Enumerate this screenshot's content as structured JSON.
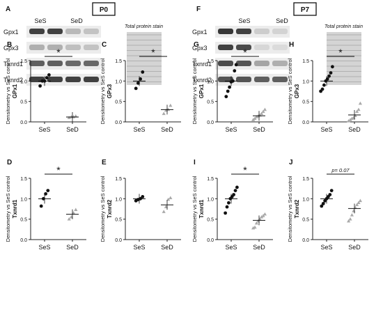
{
  "panels_blot": [
    {
      "id": "P0",
      "label_rows": "A",
      "label_stain": "",
      "box_label": "P0",
      "group_labels": [
        "SeS",
        "SeD"
      ],
      "rows": [
        "Gpx1",
        "Gpx3",
        "Txnrd1",
        "Txnrd2"
      ],
      "intensities": [
        [
          0.85,
          0.85,
          0.25,
          0.2
        ],
        [
          0.3,
          0.3,
          0.22,
          0.2
        ],
        [
          0.7,
          0.7,
          0.65,
          0.65
        ],
        [
          0.85,
          0.85,
          0.85,
          0.85
        ]
      ],
      "stain_label": "Total protein stain"
    },
    {
      "id": "P7",
      "label_rows": "F",
      "box_label": "P7",
      "group_labels": [
        "SeS",
        "SeD"
      ],
      "rows": [
        "Gpx1",
        "Gpx3",
        "Txnrd1",
        "Txnrd2"
      ],
      "intensities": [
        [
          0.9,
          0.85,
          0.15,
          0.12
        ],
        [
          0.85,
          0.8,
          0.1,
          0.08
        ],
        [
          0.8,
          0.75,
          0.35,
          0.3
        ],
        [
          0.75,
          0.75,
          0.7,
          0.7
        ]
      ],
      "stain_label": "Total protein stain"
    }
  ],
  "y_axis_common": "Densitometry vs SeS control",
  "chart_data": [
    {
      "panel": "B",
      "type": "scatter",
      "ylabel": "GPx1",
      "categories": [
        "SeS",
        "SeD"
      ],
      "ylim": [
        0,
        1.5
      ],
      "yticks": [
        "0.0",
        "0.5",
        "1.0",
        "1.5"
      ],
      "series": [
        {
          "values": [
            0.88,
            1.0,
            1.0,
            1.08,
            1.15
          ]
        },
        {
          "values": [
            0.1,
            0.12,
            0.12,
            0.14
          ]
        }
      ],
      "means": [
        1.0,
        0.12
      ],
      "significance": "*"
    },
    {
      "panel": "C",
      "type": "scatter",
      "ylabel": "GPx3",
      "categories": [
        "SeS",
        "SeD"
      ],
      "ylim": [
        0,
        1.5
      ],
      "yticks": [
        "0.0",
        "0.5",
        "1.0",
        "1.5"
      ],
      "series": [
        {
          "values": [
            0.82,
            0.95,
            1.05,
            1.22
          ]
        },
        {
          "values": [
            0.2,
            0.28,
            0.3,
            0.4
          ]
        }
      ],
      "means": [
        1.0,
        0.3
      ],
      "significance": "*"
    },
    {
      "panel": "D",
      "type": "scatter",
      "ylabel": "Txnrd1",
      "categories": [
        "SeS",
        "SeD"
      ],
      "ylim": [
        0,
        1.5
      ],
      "yticks": [
        "0.0",
        "0.5",
        "1.0",
        "1.5"
      ],
      "series": [
        {
          "values": [
            0.82,
            1.0,
            1.12,
            1.2
          ]
        },
        {
          "values": [
            0.5,
            0.55,
            0.65,
            0.73
          ]
        }
      ],
      "means": [
        1.0,
        0.62
      ],
      "significance": "*"
    },
    {
      "panel": "E",
      "type": "scatter",
      "ylabel": "Txnrd2",
      "categories": [
        "SeS",
        "SeD"
      ],
      "ylim": [
        0,
        1.5
      ],
      "yticks": [
        "0.0",
        "0.5",
        "1.0",
        "1.5"
      ],
      "series": [
        {
          "values": [
            0.95,
            0.98,
            1.0,
            1.05
          ]
        },
        {
          "values": [
            0.68,
            0.8,
            0.98,
            1.02
          ]
        }
      ],
      "means": [
        1.0,
        0.85
      ],
      "significance": ""
    },
    {
      "panel": "G",
      "type": "scatter",
      "ylabel": "GPx1",
      "categories": [
        "SeS",
        "SeD"
      ],
      "ylim": [
        0,
        1.5
      ],
      "yticks": [
        "0.0",
        "0.5",
        "1.0",
        "1.5"
      ],
      "series": [
        {
          "values": [
            0.62,
            0.75,
            0.85,
            0.98,
            1.0,
            1.25,
            1.4
          ]
        },
        {
          "values": [
            0.05,
            0.08,
            0.12,
            0.14,
            0.16,
            0.2,
            0.25,
            0.3
          ]
        }
      ],
      "means": [
        1.0,
        0.15
      ],
      "significance": "*"
    },
    {
      "panel": "H",
      "type": "scatter",
      "ylabel": "GPx3",
      "categories": [
        "SeS",
        "SeD"
      ],
      "ylim": [
        0,
        1.5
      ],
      "yticks": [
        "0.0",
        "0.5",
        "1.0",
        "1.5"
      ],
      "series": [
        {
          "values": [
            0.75,
            0.8,
            0.9,
            1.0,
            1.05,
            1.12,
            1.2,
            1.35
          ]
        },
        {
          "values": [
            0.02,
            0.05,
            0.08,
            0.1,
            0.15,
            0.25,
            0.3,
            0.45
          ]
        }
      ],
      "means": [
        1.0,
        0.17
      ],
      "significance": "*"
    },
    {
      "panel": "I",
      "type": "scatter",
      "ylabel": "Txnrd1",
      "categories": [
        "SeS",
        "SeD"
      ],
      "ylim": [
        0,
        1.5
      ],
      "yticks": [
        "0.0",
        "0.5",
        "1.0",
        "1.5"
      ],
      "series": [
        {
          "values": [
            0.65,
            0.8,
            0.9,
            1.0,
            1.05,
            1.1,
            1.2,
            1.28
          ]
        },
        {
          "values": [
            0.28,
            0.3,
            0.4,
            0.45,
            0.5,
            0.55,
            0.58,
            0.62
          ]
        }
      ],
      "means": [
        1.0,
        0.47
      ],
      "significance": "*"
    },
    {
      "panel": "J",
      "type": "scatter",
      "ylabel": "Txnrd2",
      "categories": [
        "SeS",
        "SeD"
      ],
      "ylim": [
        0,
        1.5
      ],
      "yticks": [
        "0.0",
        "0.5",
        "1.0",
        "1.5"
      ],
      "series": [
        {
          "values": [
            0.82,
            0.88,
            0.95,
            1.0,
            1.05,
            1.1,
            1.2
          ]
        },
        {
          "values": [
            0.45,
            0.5,
            0.6,
            0.7,
            0.78,
            0.85,
            0.9,
            0.95
          ]
        }
      ],
      "means": [
        1.0,
        0.76
      ],
      "significance": "p= 0.07"
    }
  ],
  "colors": {
    "ses_point": "#111111",
    "sed_point": "#aaaaaa",
    "axis": "#222222"
  }
}
